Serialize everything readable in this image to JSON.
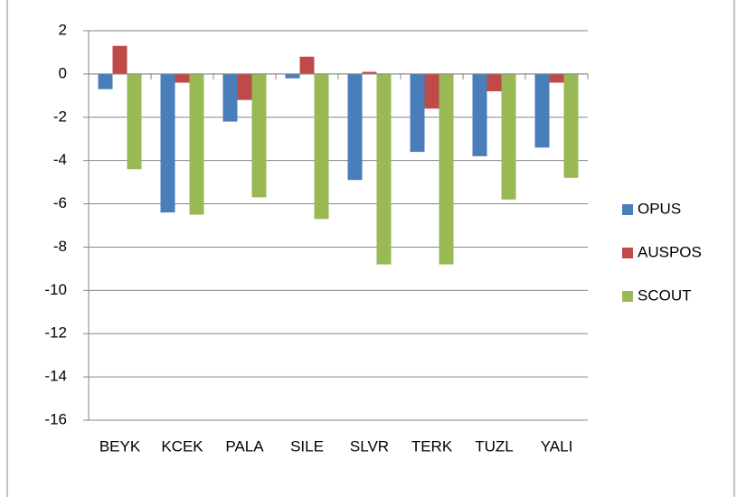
{
  "chart_data": {
    "type": "bar",
    "categories": [
      "BEYK",
      "KCEK",
      "PALA",
      "SILE",
      "SLVR",
      "TERK",
      "TUZL",
      "YALI"
    ],
    "series": [
      {
        "name": "OPUS",
        "color": "#4a7ebb",
        "values": [
          -0.7,
          -6.4,
          -2.2,
          -0.2,
          -4.9,
          -3.6,
          -3.8,
          -3.4
        ]
      },
      {
        "name": "AUSPOS",
        "color": "#be4b48",
        "values": [
          1.3,
          -0.4,
          -1.2,
          0.8,
          0.1,
          -1.6,
          -0.8,
          -0.4
        ]
      },
      {
        "name": "SCOUT",
        "color": "#98b954",
        "values": [
          -4.4,
          -6.5,
          -5.7,
          -6.7,
          -8.8,
          -8.8,
          -5.8,
          -4.8
        ]
      }
    ],
    "ylim": [
      -16,
      2
    ],
    "yticks": [
      -16,
      -14,
      -12,
      -10,
      -8,
      -6,
      -4,
      -2,
      0,
      2
    ],
    "grid": true,
    "legend": "right"
  }
}
